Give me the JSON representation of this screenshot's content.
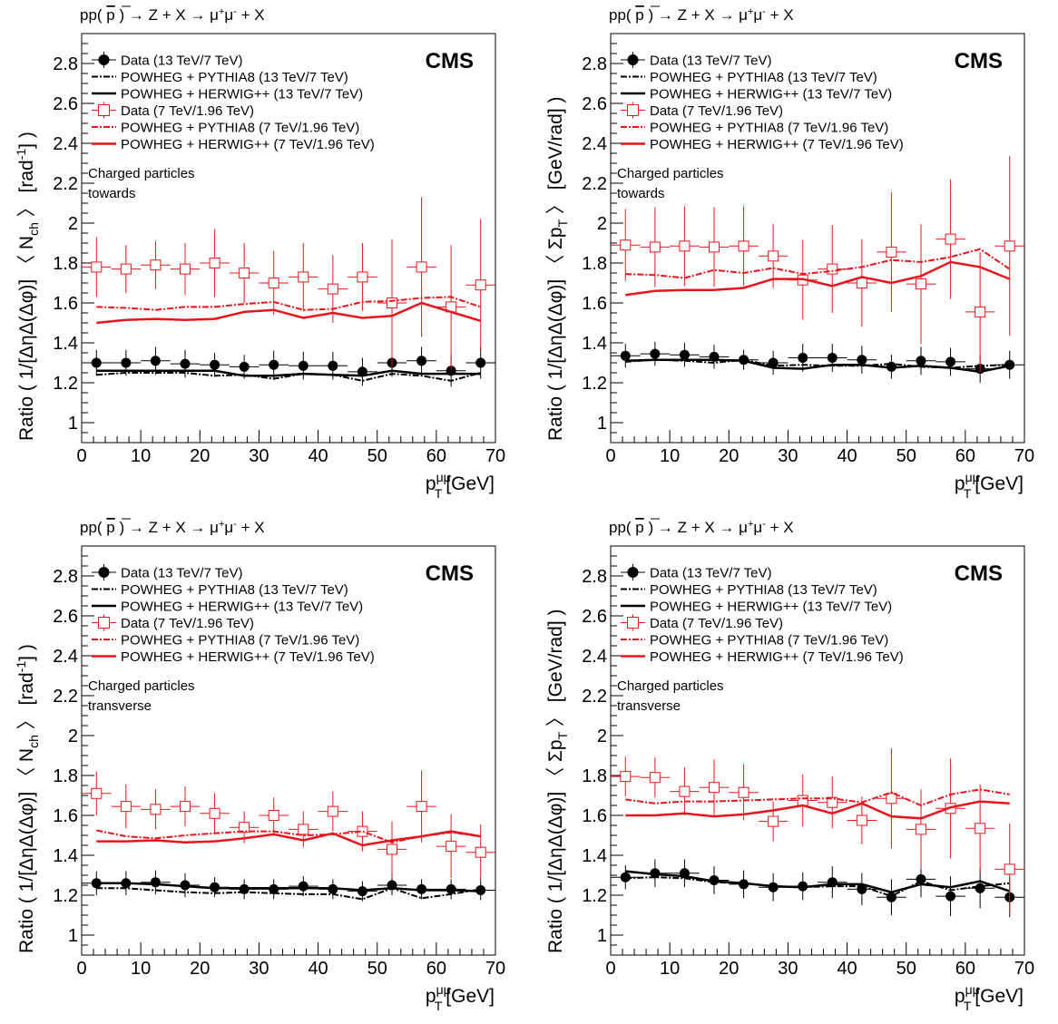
{
  "page": {
    "background": "#ffffff"
  },
  "colors": {
    "black": "#000000",
    "red": "#e8141c"
  },
  "common": {
    "process_parts": [
      "pp( ",
      "p",
      " ) → Z + X → μ",
      "+",
      "μ",
      "-",
      " + X"
    ],
    "experiment": "CMS",
    "x_title_main": "p",
    "x_title_sup": "μμ",
    "x_title_sub": "T",
    "x_title_unit": "[GeV]",
    "legend": [
      {
        "label": "Data (13 TeV/7 TeV)",
        "style": "marker-filled",
        "color": "#000000"
      },
      {
        "label": "POWHEG + PYTHIA8 (13 TeV/7 TeV)",
        "style": "dashdot",
        "color": "#000000"
      },
      {
        "label": "POWHEG + HERWIG++ (13 TeV/7 TeV)",
        "style": "solid",
        "color": "#000000"
      },
      {
        "label": "Data (7 TeV/1.96 TeV)",
        "style": "marker-open",
        "color": "#e8141c"
      },
      {
        "label": "POWHEG + PYTHIA8 (7 TeV/1.96 TeV)",
        "style": "dashdot",
        "color": "#e8141c"
      },
      {
        "label": "POWHEG + HERWIG++ (7 TeV/1.96 TeV)",
        "style": "solid",
        "color": "#e8141c"
      }
    ]
  },
  "chart_data": [
    {
      "type": "scatter",
      "title": "",
      "note_line1": "Charged particles",
      "note_line2": "towards",
      "ylabel_parts": [
        "Ratio ( 1/[ΔηΔ(Δφ)] 〈 N",
        "ch",
        " 〉 [rad",
        "-1",
        "] )"
      ],
      "xlabel": "p_T^μμ [GeV]",
      "xlim": [
        0,
        70
      ],
      "ylim": [
        0.9,
        2.95
      ],
      "x_ticks": [
        0,
        10,
        20,
        30,
        40,
        50,
        60,
        70
      ],
      "y_ticks": [
        1,
        1.2,
        1.4,
        1.6,
        1.8,
        2,
        2.2,
        2.4,
        2.6,
        2.8
      ],
      "x": [
        2.5,
        7.5,
        12.5,
        17.5,
        22.5,
        27.5,
        32.5,
        37.5,
        42.5,
        47.5,
        52.5,
        57.5,
        62.5,
        67.5
      ],
      "series": [
        {
          "name": "Data (13 TeV/7 TeV)",
          "kind": "data-filled",
          "values": [
            1.3,
            1.3,
            1.31,
            1.295,
            1.29,
            1.28,
            1.29,
            1.285,
            1.285,
            1.255,
            1.3,
            1.31,
            1.26,
            1.3
          ],
          "errors": [
            0.065,
            0.065,
            0.07,
            0.07,
            0.06,
            0.06,
            0.07,
            0.07,
            0.07,
            0.07,
            0.07,
            0.07,
            0.08,
            0.08
          ]
        },
        {
          "name": "POWHEG + PYTHIA8 (13 TeV/7 TeV)",
          "kind": "dashdot-black",
          "values": [
            1.24,
            1.25,
            1.25,
            1.25,
            1.235,
            1.24,
            1.22,
            1.245,
            1.24,
            1.21,
            1.245,
            1.235,
            1.21,
            1.25
          ]
        },
        {
          "name": "POWHEG + HERWIG++ (13 TeV/7 TeV)",
          "kind": "solid-black",
          "values": [
            1.26,
            1.26,
            1.26,
            1.26,
            1.26,
            1.235,
            1.235,
            1.245,
            1.24,
            1.235,
            1.26,
            1.245,
            1.245,
            1.245
          ]
        },
        {
          "name": "Data (7 TeV/1.96 TeV)",
          "kind": "data-open",
          "values": [
            1.78,
            1.77,
            1.79,
            1.77,
            1.8,
            1.75,
            1.7,
            1.73,
            1.67,
            1.73,
            1.6,
            1.78,
            1.58,
            1.69
          ],
          "errors": [
            0.15,
            0.12,
            0.12,
            0.13,
            0.17,
            0.15,
            0.16,
            0.17,
            0.17,
            0.17,
            0.32,
            0.35,
            0.31,
            0.33
          ]
        },
        {
          "name": "POWHEG + PYTHIA8 (7 TeV/1.96 TeV)",
          "kind": "dashdot-red",
          "values": [
            1.58,
            1.575,
            1.565,
            1.58,
            1.58,
            1.595,
            1.605,
            1.565,
            1.57,
            1.605,
            1.61,
            1.625,
            1.63,
            1.58
          ]
        },
        {
          "name": "POWHEG + HERWIG++ (7 TeV/1.96 TeV)",
          "kind": "solid-red",
          "values": [
            1.5,
            1.515,
            1.52,
            1.515,
            1.52,
            1.555,
            1.565,
            1.525,
            1.55,
            1.525,
            1.535,
            1.6,
            1.555,
            1.51
          ]
        }
      ]
    },
    {
      "type": "scatter",
      "title": "",
      "note_line1": "Charged particles",
      "note_line2": "towards",
      "ylabel_parts": [
        "Ratio ( 1/[ΔηΔ(Δφ)] 〈 Σp",
        "T",
        " 〉 [GeV/rad] )",
        "",
        ""
      ],
      "xlabel": "p_T^μμ [GeV]",
      "xlim": [
        0,
        70
      ],
      "ylim": [
        0.9,
        2.95
      ],
      "x_ticks": [
        0,
        10,
        20,
        30,
        40,
        50,
        60,
        70
      ],
      "y_ticks": [
        1,
        1.2,
        1.4,
        1.6,
        1.8,
        2,
        2.2,
        2.4,
        2.6,
        2.8
      ],
      "x": [
        2.5,
        7.5,
        12.5,
        17.5,
        22.5,
        27.5,
        32.5,
        37.5,
        42.5,
        47.5,
        52.5,
        57.5,
        62.5,
        67.5
      ],
      "series": [
        {
          "name": "Data (13 TeV/7 TeV)",
          "kind": "data-filled",
          "values": [
            1.335,
            1.345,
            1.34,
            1.33,
            1.315,
            1.3,
            1.325,
            1.325,
            1.315,
            1.28,
            1.31,
            1.305,
            1.27,
            1.29
          ],
          "errors": [
            0.06,
            0.06,
            0.06,
            0.06,
            0.05,
            0.06,
            0.07,
            0.07,
            0.07,
            0.06,
            0.07,
            0.07,
            0.07,
            0.07
          ]
        },
        {
          "name": "POWHEG + PYTHIA8 (13 TeV/7 TeV)",
          "kind": "dashdot-black",
          "values": [
            1.305,
            1.315,
            1.31,
            1.3,
            1.315,
            1.285,
            1.29,
            1.285,
            1.285,
            1.295,
            1.28,
            1.275,
            1.285,
            1.29
          ]
        },
        {
          "name": "POWHEG + HERWIG++ (13 TeV/7 TeV)",
          "kind": "solid-black",
          "values": [
            1.31,
            1.315,
            1.315,
            1.315,
            1.31,
            1.275,
            1.27,
            1.29,
            1.29,
            1.275,
            1.285,
            1.275,
            1.255,
            1.285
          ]
        },
        {
          "name": "Data (7 TeV/1.96 TeV)",
          "kind": "data-open",
          "values": [
            1.89,
            1.88,
            1.885,
            1.88,
            1.885,
            1.835,
            1.715,
            1.77,
            1.7,
            1.855,
            1.695,
            1.92,
            1.555,
            1.885
          ],
          "errors": [
            0.18,
            0.2,
            0.2,
            0.2,
            0.2,
            0.16,
            0.2,
            0.22,
            0.22,
            0.3,
            0.3,
            0.3,
            0.3,
            0.45
          ]
        },
        {
          "name": "POWHEG + PYTHIA8 (7 TeV/1.96 TeV)",
          "kind": "dashdot-red",
          "values": [
            1.745,
            1.74,
            1.725,
            1.765,
            1.75,
            1.775,
            1.745,
            1.76,
            1.78,
            1.815,
            1.805,
            1.83,
            1.87,
            1.77
          ]
        },
        {
          "name": "POWHEG + HERWIG++ (7 TeV/1.96 TeV)",
          "kind": "solid-red",
          "values": [
            1.64,
            1.66,
            1.665,
            1.665,
            1.675,
            1.72,
            1.72,
            1.685,
            1.73,
            1.7,
            1.735,
            1.805,
            1.78,
            1.72
          ]
        }
      ]
    },
    {
      "type": "scatter",
      "title": "",
      "note_line1": "Charged particles",
      "note_line2": "transverse",
      "ylabel_parts": [
        "Ratio ( 1/[ΔηΔ(Δφ)] 〈 N",
        "ch",
        " 〉 [rad",
        "-1",
        "] )"
      ],
      "xlabel": "p_T^μμ [GeV]",
      "xlim": [
        0,
        70
      ],
      "ylim": [
        0.9,
        2.95
      ],
      "x_ticks": [
        0,
        10,
        20,
        30,
        40,
        50,
        60,
        70
      ],
      "y_ticks": [
        1,
        1.2,
        1.4,
        1.6,
        1.8,
        2,
        2.2,
        2.4,
        2.6,
        2.8
      ],
      "x": [
        2.5,
        7.5,
        12.5,
        17.5,
        22.5,
        27.5,
        32.5,
        37.5,
        42.5,
        47.5,
        52.5,
        57.5,
        62.5,
        67.5
      ],
      "series": [
        {
          "name": "Data (13 TeV/7 TeV)",
          "kind": "data-filled",
          "values": [
            1.26,
            1.26,
            1.265,
            1.25,
            1.24,
            1.23,
            1.23,
            1.245,
            1.23,
            1.22,
            1.25,
            1.23,
            1.23,
            1.225
          ],
          "errors": [
            0.06,
            0.06,
            0.06,
            0.06,
            0.05,
            0.05,
            0.05,
            0.05,
            0.05,
            0.05,
            0.05,
            0.05,
            0.05,
            0.05
          ]
        },
        {
          "name": "POWHEG + PYTHIA8 (13 TeV/7 TeV)",
          "kind": "dashdot-black",
          "values": [
            1.235,
            1.235,
            1.225,
            1.215,
            1.21,
            1.215,
            1.21,
            1.205,
            1.205,
            1.18,
            1.235,
            1.185,
            1.205,
            1.23
          ]
        },
        {
          "name": "POWHEG + HERWIG++ (13 TeV/7 TeV)",
          "kind": "solid-black",
          "values": [
            1.26,
            1.26,
            1.255,
            1.245,
            1.235,
            1.235,
            1.235,
            1.235,
            1.235,
            1.225,
            1.235,
            1.225,
            1.225,
            1.22
          ]
        },
        {
          "name": "Data (7 TeV/1.96 TeV)",
          "kind": "data-open",
          "values": [
            1.71,
            1.645,
            1.63,
            1.645,
            1.61,
            1.54,
            1.6,
            1.53,
            1.62,
            1.52,
            1.43,
            1.645,
            1.445,
            1.415
          ],
          "errors": [
            0.11,
            0.11,
            0.1,
            0.1,
            0.1,
            0.08,
            0.09,
            0.09,
            0.1,
            0.1,
            0.14,
            0.18,
            0.16,
            0.14
          ]
        },
        {
          "name": "POWHEG + PYTHIA8 (7 TeV/1.96 TeV)",
          "kind": "dashdot-red",
          "values": [
            1.525,
            1.495,
            1.485,
            1.5,
            1.51,
            1.52,
            1.52,
            1.5,
            1.505,
            1.52,
            1.465,
            1.495,
            1.515,
            1.495
          ]
        },
        {
          "name": "POWHEG + HERWIG++ (7 TeV/1.96 TeV)",
          "kind": "solid-red",
          "values": [
            1.47,
            1.47,
            1.475,
            1.465,
            1.47,
            1.485,
            1.505,
            1.475,
            1.51,
            1.45,
            1.475,
            1.495,
            1.52,
            1.495
          ]
        }
      ]
    },
    {
      "type": "scatter",
      "title": "",
      "note_line1": "Charged particles",
      "note_line2": "transverse",
      "ylabel_parts": [
        "Ratio ( 1/[ΔηΔ(Δφ)] 〈 Σp",
        "T",
        " 〉 [GeV/rad] )",
        "",
        ""
      ],
      "xlabel": "p_T^μμ [GeV]",
      "xlim": [
        0,
        70
      ],
      "ylim": [
        0.9,
        2.95
      ],
      "x_ticks": [
        0,
        10,
        20,
        30,
        40,
        50,
        60,
        70
      ],
      "y_ticks": [
        1,
        1.2,
        1.4,
        1.6,
        1.8,
        2,
        2.2,
        2.4,
        2.6,
        2.8
      ],
      "x": [
        2.5,
        7.5,
        12.5,
        17.5,
        22.5,
        27.5,
        32.5,
        37.5,
        42.5,
        47.5,
        52.5,
        57.5,
        62.5,
        67.5
      ],
      "series": [
        {
          "name": "Data (13 TeV/7 TeV)",
          "kind": "data-filled",
          "values": [
            1.29,
            1.31,
            1.31,
            1.275,
            1.255,
            1.24,
            1.245,
            1.265,
            1.23,
            1.19,
            1.28,
            1.195,
            1.235,
            1.19
          ],
          "errors": [
            0.06,
            0.07,
            0.07,
            0.07,
            0.07,
            0.07,
            0.07,
            0.08,
            0.08,
            0.09,
            0.09,
            0.1,
            0.1,
            0.1
          ]
        },
        {
          "name": "POWHEG + PYTHIA8 (13 TeV/7 TeV)",
          "kind": "dashdot-black",
          "values": [
            1.285,
            1.29,
            1.285,
            1.265,
            1.26,
            1.245,
            1.24,
            1.245,
            1.245,
            1.195,
            1.27,
            1.225,
            1.245,
            1.26
          ]
        },
        {
          "name": "POWHEG + HERWIG++ (13 TeV/7 TeV)",
          "kind": "solid-black",
          "values": [
            1.32,
            1.305,
            1.295,
            1.27,
            1.26,
            1.245,
            1.24,
            1.255,
            1.255,
            1.215,
            1.255,
            1.24,
            1.27,
            1.22
          ]
        },
        {
          "name": "Data (7 TeV/1.96 TeV)",
          "kind": "data-open",
          "values": [
            1.795,
            1.79,
            1.72,
            1.74,
            1.715,
            1.57,
            1.675,
            1.665,
            1.575,
            1.685,
            1.53,
            1.635,
            1.535,
            1.33
          ],
          "errors": [
            0.1,
            0.1,
            0.12,
            0.14,
            0.14,
            0.1,
            0.13,
            0.13,
            0.12,
            0.25,
            0.2,
            0.25,
            0.22,
            0.23
          ]
        },
        {
          "name": "POWHEG + PYTHIA8 (7 TeV/1.96 TeV)",
          "kind": "dashdot-red",
          "values": [
            1.68,
            1.66,
            1.67,
            1.67,
            1.675,
            1.68,
            1.685,
            1.685,
            1.665,
            1.715,
            1.65,
            1.705,
            1.73,
            1.705
          ]
        },
        {
          "name": "POWHEG + HERWIG++ (7 TeV/1.96 TeV)",
          "kind": "solid-red",
          "values": [
            1.6,
            1.6,
            1.61,
            1.595,
            1.605,
            1.625,
            1.65,
            1.61,
            1.66,
            1.595,
            1.585,
            1.64,
            1.67,
            1.66
          ]
        }
      ]
    }
  ]
}
